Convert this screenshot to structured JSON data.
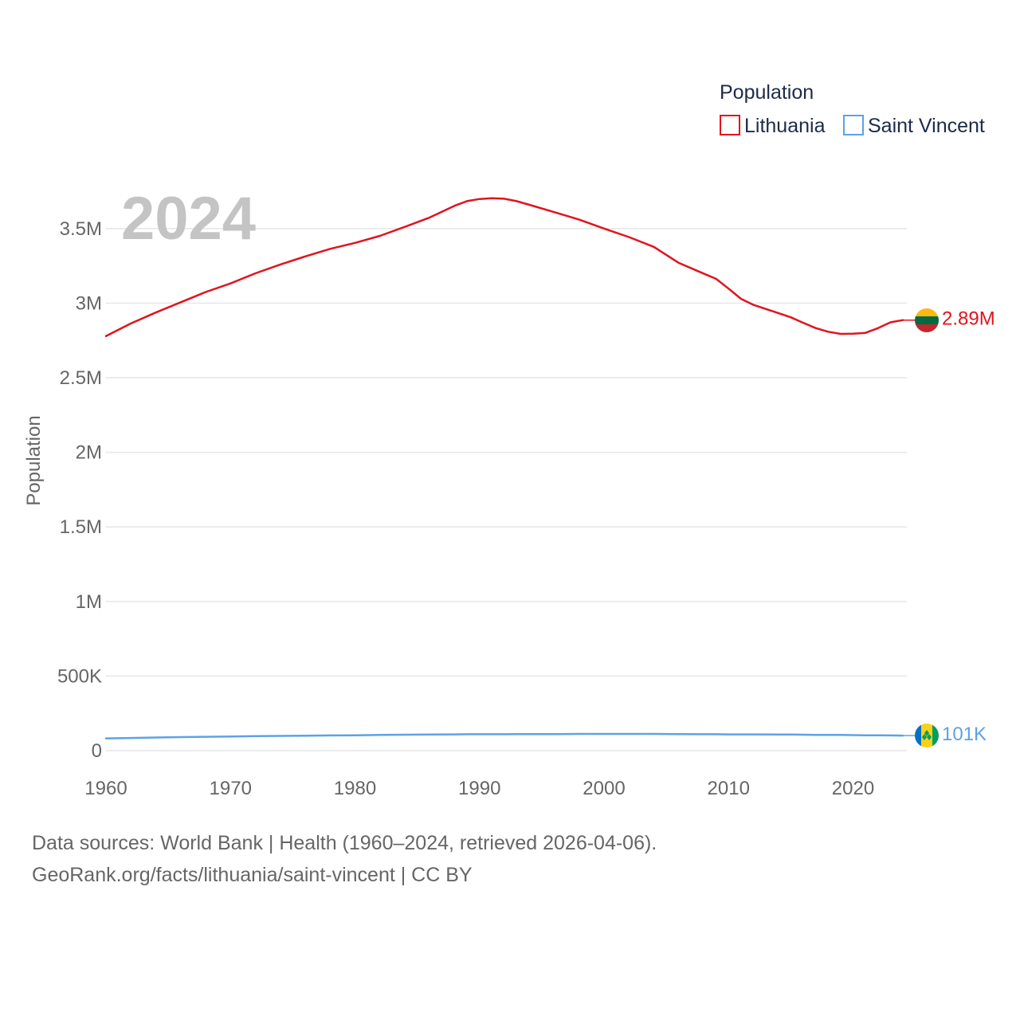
{
  "chart_data": {
    "type": "line",
    "current_year_label": "2024",
    "ylabel": "Population",
    "xlim": [
      1960,
      2024
    ],
    "ylim": [
      0,
      3750000
    ],
    "x_ticks": [
      1960,
      1970,
      1980,
      1990,
      2000,
      2010,
      2020
    ],
    "x_tick_labels": [
      "1960",
      "1970",
      "1980",
      "1990",
      "2000",
      "2010",
      "2020"
    ],
    "y_ticks": [
      0,
      500000,
      1000000,
      1500000,
      2000000,
      2500000,
      3000000,
      3500000
    ],
    "y_tick_labels": [
      "0",
      "500K",
      "1M",
      "1.5M",
      "2M",
      "2.5M",
      "3M",
      "3.5M"
    ],
    "grid": true,
    "legend": {
      "title": "Population",
      "placement": "top-right"
    },
    "x": [
      1960,
      1962,
      1964,
      1966,
      1968,
      1970,
      1972,
      1974,
      1976,
      1978,
      1980,
      1982,
      1984,
      1986,
      1988,
      1989,
      1990,
      1991,
      1992,
      1993,
      1994,
      1996,
      1998,
      2000,
      2002,
      2004,
      2006,
      2008,
      2009,
      2010,
      2011,
      2012,
      2014,
      2015,
      2016,
      2017,
      2018,
      2019,
      2020,
      2021,
      2022,
      2023,
      2024
    ],
    "series": [
      {
        "name": "Lithuania",
        "color": "#e0141e",
        "end_label": "2.89M",
        "flag": "lithuania",
        "values": [
          2779000,
          2864000,
          2937000,
          3006000,
          3074000,
          3132000,
          3200000,
          3259000,
          3313000,
          3364000,
          3404000,
          3451000,
          3511000,
          3574000,
          3653000,
          3684000,
          3698000,
          3703000,
          3700000,
          3683000,
          3659000,
          3610000,
          3560000,
          3500000,
          3443000,
          3377000,
          3270000,
          3198000,
          3163000,
          3097000,
          3029000,
          2988000,
          2933000,
          2905000,
          2868000,
          2833000,
          2808000,
          2794000,
          2795000,
          2801000,
          2832000,
          2871000,
          2886000
        ]
      },
      {
        "name": "Saint Vincent",
        "color": "#5ca3e6",
        "end_label": "101K",
        "flag": "saint-vincent",
        "values": [
          82000,
          85000,
          88000,
          91000,
          93000,
          95000,
          97000,
          99000,
          100000,
          102000,
          103000,
          105000,
          107000,
          108000,
          109000,
          110000,
          110000,
          110000,
          110000,
          111000,
          111000,
          111000,
          112000,
          112000,
          112000,
          112000,
          111000,
          110000,
          110000,
          109000,
          109000,
          109000,
          108000,
          108000,
          107000,
          106000,
          106000,
          105000,
          104000,
          103000,
          103000,
          102000,
          101000
        ]
      }
    ]
  },
  "source": {
    "line1": "Data sources: World Bank | Health (1960–2024, retrieved 2026-04-06).",
    "line2": "GeoRank.org/facts/lithuania/saint-vincent | CC BY"
  }
}
